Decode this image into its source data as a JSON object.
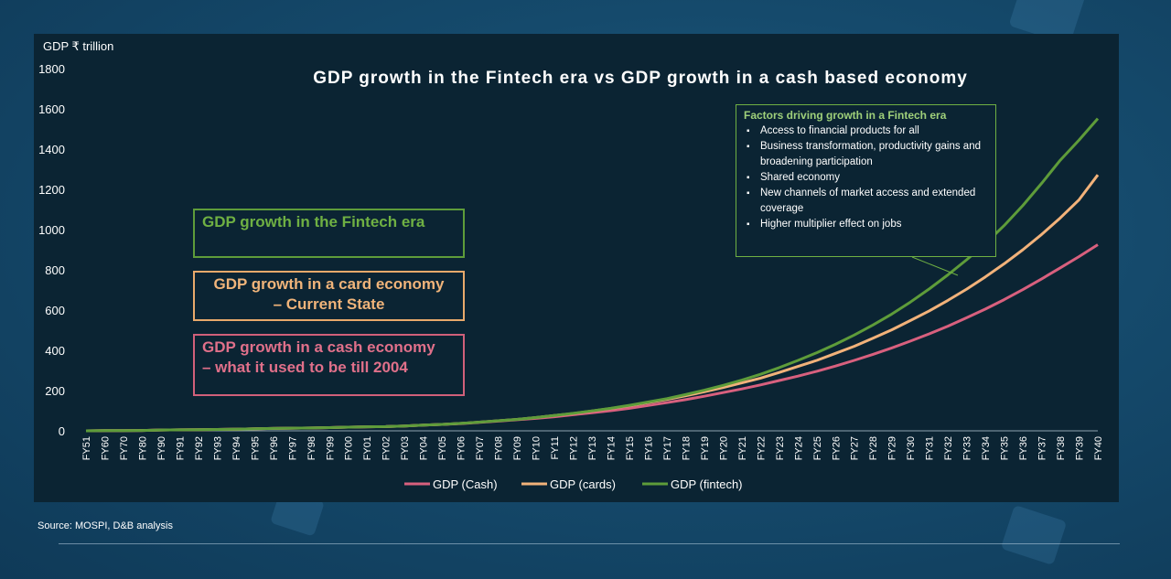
{
  "chart_data": {
    "type": "line",
    "title": "GDP growth in the Fintech era vs GDP growth in a cash based economy",
    "ylabel": "GDP ₹ trillion",
    "xlabel": "",
    "ylim": [
      0,
      1800
    ],
    "yticks": [
      0,
      200,
      400,
      600,
      800,
      1000,
      1200,
      1400,
      1600,
      1800
    ],
    "grid": false,
    "legend_position": "bottom",
    "x": [
      "FY51",
      "FY60",
      "FY70",
      "FY80",
      "FY90",
      "FY91",
      "FY92",
      "FY93",
      "FY94",
      "FY95",
      "FY96",
      "FY97",
      "FY98",
      "FY99",
      "FY00",
      "FY01",
      "FY02",
      "FY03",
      "FY04",
      "FY05",
      "FY06",
      "FY07",
      "FY08",
      "FY09",
      "FY10",
      "FY11",
      "FY12",
      "FY13",
      "FY14",
      "FY15",
      "FY16",
      "FY17",
      "FY18",
      "FY19",
      "FY20",
      "FY21",
      "FY22",
      "FY23",
      "FY24",
      "FY25",
      "FY26",
      "FY27",
      "FY28",
      "FY29",
      "FY30",
      "FY31",
      "FY32",
      "FY33",
      "FY34",
      "FY35",
      "FY36",
      "FY37",
      "FY38",
      "FY39",
      "FY40"
    ],
    "series": [
      {
        "name": "GDP (Cash)",
        "color": "#d8607e",
        "values": [
          0,
          1,
          1,
          2,
          4,
          5,
          6,
          7,
          8,
          10,
          12,
          13,
          14,
          16,
          18,
          20,
          21,
          24,
          28,
          32,
          36,
          42,
          48,
          55,
          62,
          70,
          80,
          90,
          100,
          112,
          126,
          140,
          155,
          172,
          190,
          208,
          228,
          250,
          272,
          296,
          322,
          350,
          380,
          412,
          446,
          482,
          520,
          562,
          605,
          652,
          702,
          755,
          810,
          866,
          925
        ]
      },
      {
        "name": "GDP (cards)",
        "color": "#f2b27a",
        "values": [
          0,
          1,
          1,
          2,
          4,
          5,
          6,
          7,
          8,
          10,
          12,
          13,
          14,
          16,
          18,
          20,
          21,
          24,
          28,
          32,
          37,
          43,
          50,
          57,
          66,
          76,
          86,
          98,
          111,
          125,
          140,
          156,
          174,
          194,
          215,
          238,
          262,
          290,
          320,
          350,
          385,
          420,
          460,
          502,
          548,
          596,
          648,
          704,
          765,
          830,
          900,
          976,
          1058,
          1148,
          1272
        ]
      },
      {
        "name": "GDP (fintech)",
        "color": "#5e9c3a",
        "values": [
          0,
          1,
          1,
          2,
          4,
          5,
          6,
          7,
          8,
          10,
          12,
          13,
          14,
          16,
          18,
          20,
          21,
          24,
          28,
          32,
          37,
          43,
          50,
          57,
          66,
          76,
          87,
          99,
          112,
          127,
          143,
          160,
          180,
          202,
          226,
          252,
          281,
          314,
          350,
          388,
          430,
          476,
          526,
          580,
          640,
          705,
          775,
          850,
          930,
          1020,
          1120,
          1230,
          1345,
          1445,
          1552
        ]
      }
    ]
  },
  "callouts": {
    "fintech": "GDP growth in the Fintech era",
    "card_line1": "GDP growth in a card economy",
    "card_line2": "– Current State",
    "cash_line1": "GDP growth in a cash economy",
    "cash_line2": "– what it used to be till 2004"
  },
  "factors": {
    "title": "Factors driving growth in a Fintech era",
    "items": [
      "Access to financial products for all",
      "Business transformation, productivity gains and broadening participation",
      "Shared economy",
      "New channels of market access and extended coverage",
      "Higher multiplier effect on jobs"
    ]
  },
  "source": "Source: MOSPI, D&B analysis",
  "colors": {
    "background": "#154a6c",
    "panel": "#0b2433",
    "cash": "#d8607e",
    "cards": "#f2b27a",
    "fintech": "#5e9c3a"
  }
}
